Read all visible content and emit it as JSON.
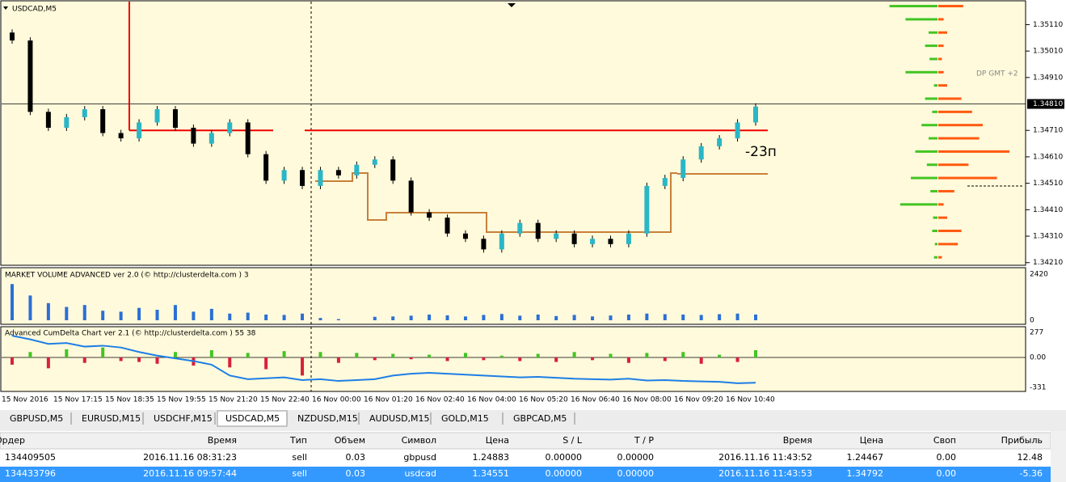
{
  "chart": {
    "symbol": "USDCAD,M5",
    "server_note": "DP GMT +2",
    "annotation": "-23п",
    "ylim": [
      1.342,
      1.352
    ],
    "yticks": [
      {
        "value": 1.3511,
        "label": "1.35110"
      },
      {
        "value": 1.3501,
        "label": "1.35010"
      },
      {
        "value": 1.3491,
        "label": "1.34910"
      },
      {
        "value": 1.3471,
        "label": "1.34710"
      },
      {
        "value": 1.3461,
        "label": "1.34610"
      },
      {
        "value": 1.3451,
        "label": "1.34510"
      },
      {
        "value": 1.3441,
        "label": "1.34410"
      },
      {
        "value": 1.3431,
        "label": "1.34310"
      },
      {
        "value": 1.3421,
        "label": "1.34210"
      }
    ],
    "current_price": {
      "value": 1.3481,
      "label": "1.34810"
    },
    "level": 1.3471,
    "open": 1.3508,
    "closes": [
      1.3505,
      1.3478,
      1.3472,
      1.3476,
      1.3479,
      1.347,
      1.3468,
      1.3474,
      1.3479,
      1.3472,
      1.3466,
      1.347,
      1.3474,
      1.3462,
      1.3452,
      1.3456,
      1.345,
      1.3456,
      1.3454,
      1.3458,
      1.346,
      1.3452,
      1.344,
      1.3438,
      1.3432,
      1.343,
      1.3426,
      1.3432,
      1.3436,
      1.343,
      1.3432,
      1.3428,
      1.343,
      1.3428,
      1.3432,
      1.345,
      1.3453,
      1.346,
      1.3465,
      1.3468,
      1.3474,
      1.348
    ],
    "profile_prices": [
      1.3423,
      1.3428,
      1.3433,
      1.3438,
      1.3443,
      1.3448,
      1.3453,
      1.3458,
      1.3463,
      1.3468,
      1.3473,
      1.3478,
      1.3483,
      1.3488,
      1.3493,
      1.3498,
      1.3503,
      1.3508,
      1.3513,
      1.3518
    ],
    "profile_buy": [
      4,
      3,
      6,
      5,
      42,
      8,
      30,
      12,
      25,
      10,
      18,
      6,
      14,
      4,
      36,
      9,
      14,
      10,
      36,
      54
    ],
    "profile_sell": [
      4,
      22,
      26,
      10,
      6,
      18,
      66,
      34,
      80,
      46,
      50,
      38,
      26,
      10,
      6,
      4,
      6,
      10,
      6,
      28
    ]
  },
  "volume_panel": {
    "title": "MARKET VOLUME ADVANCED ver 2.0 (© http://clusterdelta.com ) 3",
    "ylim": [
      0,
      2420
    ],
    "yticks": [
      2420,
      0
    ],
    "values": [
      1900,
      1300,
      900,
      700,
      800,
      500,
      450,
      650,
      550,
      800,
      450,
      600,
      350,
      400,
      300,
      280,
      350,
      120,
      60,
      0,
      180,
      200,
      240,
      300,
      260,
      200,
      280,
      330,
      240,
      300,
      220,
      280,
      200,
      250,
      300,
      350,
      320,
      300,
      280,
      320,
      350,
      300
    ]
  },
  "cumdelta_panel": {
    "title": "Advanced CumDelta Chart ver 2.1 (© http://clusterdelta.com ) 55 38",
    "ylim": [
      -331,
      277
    ],
    "yticks": [
      277,
      {
        "value": 0,
        "label": "0.00"
      },
      -331
    ],
    "deltas": [
      -80,
      60,
      -120,
      90,
      -60,
      110,
      -40,
      -50,
      -70,
      60,
      -90,
      80,
      -110,
      50,
      -130,
      70,
      -200,
      60,
      -60,
      50,
      -30,
      40,
      -20,
      30,
      -40,
      50,
      -30,
      20,
      -40,
      40,
      -50,
      60,
      -30,
      40,
      -60,
      50,
      -40,
      60,
      -70,
      30,
      -50,
      80
    ],
    "cumdelta": [
      240,
      200,
      150,
      160,
      120,
      130,
      110,
      60,
      20,
      -10,
      -40,
      -80,
      -200,
      -240,
      -230,
      -220,
      -250,
      -240,
      -260,
      -250,
      -240,
      -200,
      -180,
      -170,
      -180,
      -190,
      -200,
      -210,
      -220,
      -215,
      -225,
      -235,
      -240,
      -245,
      -235,
      -255,
      -250,
      -260,
      -265,
      -270,
      -285,
      -280
    ]
  },
  "time_labels": [
    "15 Nov 2016",
    "15 Nov 17:15",
    "15 Nov 18:35",
    "15 Nov 19:55",
    "15 Nov 21:20",
    "15 Nov 22:40",
    "16 Nov 00:00",
    "16 Nov 01:20",
    "16 Nov 02:40",
    "16 Nov 04:00",
    "16 Nov 05:20",
    "16 Nov 06:40",
    "16 Nov 08:00",
    "16 Nov 09:20",
    "16 Nov 10:40"
  ],
  "tabs": [
    "GBPUSD,M5",
    "EURUSD,M15",
    "USDCHF,M15",
    "USDCAD,M5",
    "NZDUSD,M15",
    "AUDUSD,M15",
    "GOLD,M15",
    "GBPCAD,M5"
  ],
  "table": {
    "columns": [
      "Ордер",
      "Время",
      "Тип",
      "Объем",
      "Символ",
      "Цена",
      "S / L",
      "T / P",
      "Время",
      "Цена",
      "Своп",
      "Прибыль"
    ],
    "rows": [
      [
        "134409505",
        "2016.11.16 08:31:23",
        "sell",
        "0.03",
        "gbpusd",
        "1.24883",
        "0.00000",
        "0.00000",
        "2016.11.16 11:43:52",
        "1.24467",
        "0.00",
        "12.48"
      ],
      [
        "134433796",
        "2016.11.16 09:57:44",
        "sell",
        "0.03",
        "usdcad",
        "1.34551",
        "0.00000",
        "0.00000",
        "2016.11.16 11:43:53",
        "1.34792",
        "0.00",
        "-5.36"
      ]
    ]
  }
}
